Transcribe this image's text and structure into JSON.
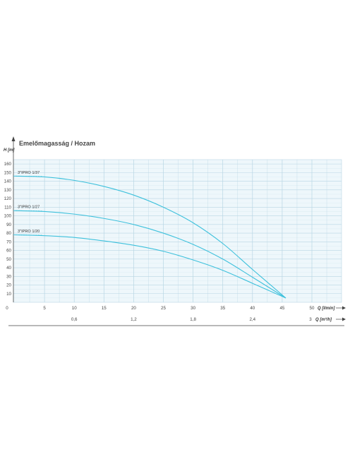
{
  "chart_data": {
    "type": "line",
    "title": "Emelőmagasság / Hozam",
    "ylabel": "H [m]",
    "xlabel": "Q [l/min]",
    "x2label": "Q [m³/h]",
    "xlim": [
      0,
      50
    ],
    "ylim": [
      0,
      165
    ],
    "yticks": [
      10,
      20,
      30,
      40,
      50,
      60,
      70,
      80,
      90,
      100,
      110,
      120,
      130,
      140,
      150,
      160
    ],
    "xticks": [
      0,
      5,
      10,
      15,
      20,
      25,
      30,
      35,
      40,
      45,
      50
    ],
    "x2ticks": [
      "0,6",
      "1,2",
      "1,8",
      "2,4",
      "3"
    ],
    "x2tick_values_lmin": [
      10,
      20,
      30,
      40,
      50
    ],
    "grid": true,
    "colors": {
      "curve": "#3ec1dc",
      "grid": "#b8d6e4",
      "plot_bg": "#eef7fb",
      "axis": "#444444"
    },
    "series": [
      {
        "name": "3\"IPRO 1/37",
        "x": [
          0,
          5,
          10,
          15,
          20,
          25,
          30,
          35,
          40,
          45.6
        ],
        "y": [
          146,
          145,
          141,
          134,
          124,
          110,
          92,
          68,
          38,
          5
        ]
      },
      {
        "name": "3\"IPRO 1/27",
        "x": [
          0,
          5,
          10,
          15,
          20,
          25,
          30,
          35,
          40,
          45.6
        ],
        "y": [
          106,
          105,
          102,
          97,
          90,
          80,
          67,
          50,
          29,
          5
        ]
      },
      {
        "name": "3\"IPRO 1/20",
        "x": [
          0,
          5,
          10,
          15,
          20,
          25,
          30,
          35,
          40,
          45.6
        ],
        "y": [
          78,
          77,
          75,
          71,
          66,
          59,
          49,
          37,
          22,
          5
        ]
      }
    ]
  }
}
